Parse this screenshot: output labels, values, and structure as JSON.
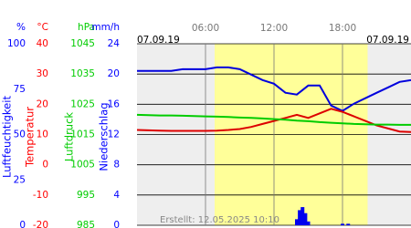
{
  "chart_data": {
    "type": "line",
    "date_left": "07.09.19",
    "date_right": "07.09.19",
    "footer": "Erstellt: 12.05.2025 10:10",
    "xlim": [
      0,
      24
    ],
    "xticks": [
      {
        "value": 6,
        "label": "06:00"
      },
      {
        "value": 12,
        "label": "12:00"
      },
      {
        "value": 18,
        "label": "18:00"
      }
    ],
    "daylight": [
      6.8,
      20.2
    ],
    "axes": [
      {
        "unit": "%",
        "title": "Luftfeuchtigkeit",
        "color": "#0000ff",
        "lim": [
          0,
          100
        ],
        "ticks": [
          0,
          25,
          50,
          75,
          100
        ]
      },
      {
        "unit": "°C",
        "title": "Temperatur",
        "color": "#ff0000",
        "lim": [
          -20,
          40
        ],
        "ticks": [
          -20,
          -10,
          0,
          10,
          20,
          30,
          40
        ]
      },
      {
        "unit": "hPa",
        "title": "Luftdruck",
        "color": "#00cc00",
        "lim": [
          985,
          1045
        ],
        "ticks": [
          985,
          995,
          1005,
          1015,
          1025,
          1035,
          1045
        ]
      },
      {
        "unit": "mm/h",
        "title": "Niederschlag",
        "color": "#0000ff",
        "lim": [
          0,
          24
        ],
        "ticks": [
          0,
          4,
          8,
          12,
          16,
          20,
          24
        ]
      }
    ],
    "x": [
      0,
      1,
      2,
      3,
      4,
      5,
      6,
      7,
      8,
      9,
      10,
      11,
      12,
      13,
      14,
      15,
      16,
      17,
      18,
      19,
      20,
      21,
      22,
      23,
      24
    ],
    "series": [
      {
        "name": "Luftfeuchtigkeit",
        "color": "#0000dd",
        "axis": 0,
        "values": [
          85,
          85,
          85,
          85,
          86,
          86,
          86,
          87,
          87,
          86,
          83,
          80,
          78,
          73,
          72,
          77,
          77,
          66,
          63,
          67,
          70,
          73,
          76,
          79,
          80
        ]
      },
      {
        "name": "Temperatur",
        "color": "#dd0000",
        "axis": 1,
        "values": [
          11.5,
          11.4,
          11.3,
          11.2,
          11.2,
          11.2,
          11.2,
          11.3,
          11.5,
          11.8,
          12.5,
          13.5,
          14.5,
          15.5,
          16.5,
          15.5,
          17,
          18.5,
          17.5,
          16,
          14.5,
          13,
          12,
          11,
          10.8
        ]
      },
      {
        "name": "Luftdruck",
        "color": "#00cc00",
        "axis": 2,
        "values": [
          1021.5,
          1021.4,
          1021.3,
          1021.3,
          1021.2,
          1021.1,
          1021.0,
          1020.9,
          1020.8,
          1020.6,
          1020.5,
          1020.3,
          1020.1,
          1019.9,
          1019.6,
          1019.4,
          1019.1,
          1018.9,
          1018.7,
          1018.5,
          1018.4,
          1018.3,
          1018.3,
          1018.2,
          1018.2
        ]
      }
    ],
    "precipitation": {
      "name": "Niederschlag",
      "color": "#0000ee",
      "axis": 3,
      "x": [
        14.0,
        14.25,
        14.5,
        14.75,
        15.0,
        18.0,
        18.5
      ],
      "values": [
        0.8,
        2.0,
        2.4,
        1.6,
        0.5,
        0.2,
        0.2
      ]
    }
  }
}
